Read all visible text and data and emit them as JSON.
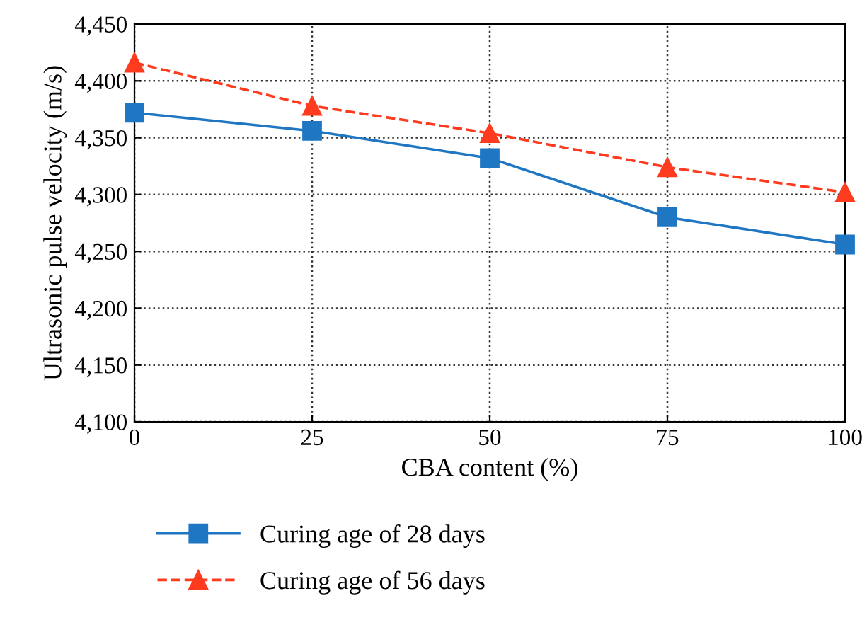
{
  "chart_data": {
    "type": "line",
    "xlabel": "CBA content (%)",
    "ylabel": "Ultrasonic pulse velocity (m/s)",
    "x": [
      0,
      25,
      50,
      75,
      100
    ],
    "series": [
      {
        "name": "Curing age of 28 days",
        "color": "#1f77c4",
        "values": [
          4372,
          4356,
          4332,
          4280,
          4256
        ],
        "marker": "square",
        "line_style": "solid"
      },
      {
        "name": "Curing age of 56 days",
        "color": "#ff3b1f",
        "values": [
          4416,
          4378,
          4354,
          4324,
          4302
        ],
        "marker": "triangle",
        "line_style": "dashed"
      }
    ],
    "xlim": [
      0,
      100
    ],
    "xticks": [
      0,
      25,
      50,
      75,
      100
    ],
    "ylim": [
      4100,
      4450
    ],
    "yticks": [
      {
        "value": 4100,
        "label": "4,100"
      },
      {
        "value": 4150,
        "label": "4,150"
      },
      {
        "value": 4200,
        "label": "4,200"
      },
      {
        "value": 4250,
        "label": "4,250"
      },
      {
        "value": 4300,
        "label": "4,300"
      },
      {
        "value": 4350,
        "label": "4,350"
      },
      {
        "value": 4400,
        "label": "4,400"
      },
      {
        "value": 4450,
        "label": "4,450"
      }
    ],
    "grid": true,
    "legend": "bottom"
  }
}
